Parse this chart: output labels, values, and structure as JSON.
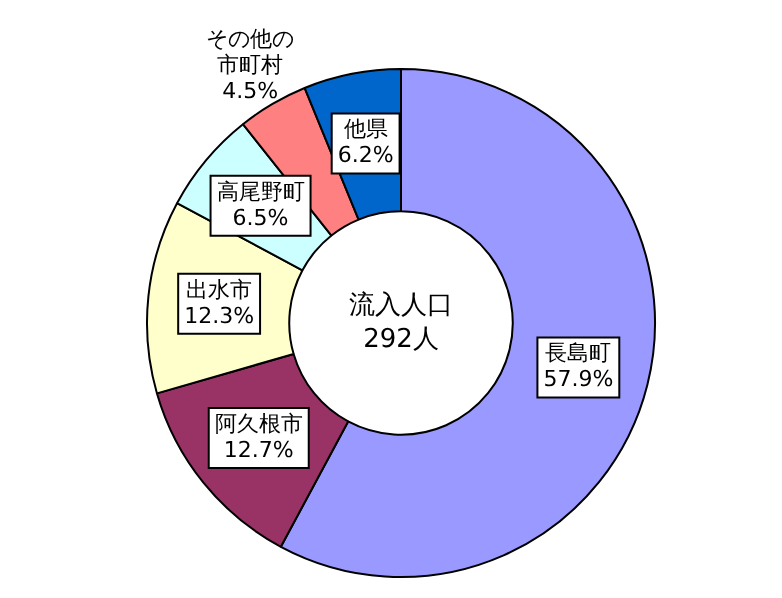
{
  "chart_data": {
    "type": "donut",
    "categories": [
      "長島町",
      "阿久根市",
      "出水市",
      "高尾野町",
      "その他の市町村",
      "他県"
    ],
    "values": [
      57.9,
      12.7,
      12.3,
      6.5,
      4.5,
      6.2
    ],
    "colors": [
      "#9999ff",
      "#993366",
      "#ffffcc",
      "#ccffff",
      "#ff8080",
      "#0066cc"
    ],
    "value_labels": [
      "57.9%",
      "12.7%",
      "12.3%",
      "6.5%",
      "4.5%",
      "6.2%"
    ],
    "legend": false,
    "annotations": [
      "流入人口",
      "292人"
    ]
  }
}
